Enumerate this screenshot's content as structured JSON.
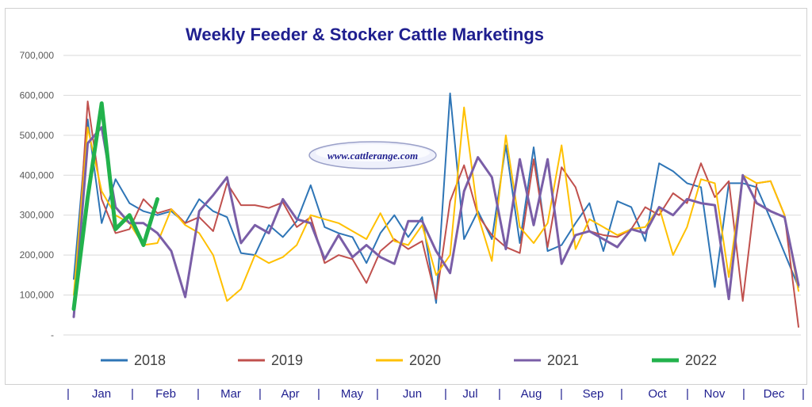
{
  "chart_data": {
    "type": "line",
    "title": "Weekly Feeder & Stocker Cattle Marketings",
    "watermark": "www.cattlerange.com",
    "ylim": [
      0,
      700000
    ],
    "yticks": [
      0,
      100000,
      200000,
      300000,
      400000,
      500000,
      600000,
      700000
    ],
    "ytick_labels": [
      "-",
      "100,000",
      "200,000",
      "300,000",
      "400,000",
      "500,000",
      "600,000",
      "700,000"
    ],
    "grid": true,
    "legend_position": "bottom",
    "month_labels": [
      "Jan",
      "Feb",
      "Mar",
      "Apr",
      "May",
      "Jun",
      "Jul",
      "Aug",
      "Sep",
      "Oct",
      "Nov",
      "Dec"
    ],
    "separator": "|",
    "weeks": 53,
    "series": [
      {
        "name": "2018",
        "color": "#2e75b6",
        "width": 2,
        "values": [
          140000,
          540000,
          280000,
          390000,
          330000,
          310000,
          300000,
          310000,
          280000,
          340000,
          310000,
          295000,
          205000,
          200000,
          275000,
          245000,
          285000,
          375000,
          270000,
          255000,
          245000,
          180000,
          255000,
          300000,
          245000,
          295000,
          80000,
          605000,
          240000,
          310000,
          240000,
          475000,
          230000,
          470000,
          210000,
          225000,
          280000,
          330000,
          210000,
          335000,
          320000,
          235000,
          430000,
          410000,
          380000,
          370000,
          120000,
          380000,
          380000,
          370000,
          290000,
          205000,
          120000
        ]
      },
      {
        "name": "2019",
        "color": "#c0504d",
        "width": 2,
        "values": [
          50000,
          585000,
          340000,
          255000,
          265000,
          340000,
          305000,
          315000,
          280000,
          295000,
          260000,
          380000,
          325000,
          325000,
          318000,
          332000,
          270000,
          295000,
          180000,
          200000,
          190000,
          130000,
          210000,
          240000,
          215000,
          235000,
          90000,
          335000,
          425000,
          300000,
          250000,
          220000,
          205000,
          440000,
          220000,
          420000,
          370000,
          260000,
          250000,
          245000,
          265000,
          320000,
          300000,
          355000,
          330000,
          430000,
          345000,
          385000,
          85000,
          380000,
          385000,
          300000,
          20000
        ]
      },
      {
        "name": "2020",
        "color": "#ffc000",
        "width": 2,
        "values": [
          100000,
          520000,
          360000,
          300000,
          280000,
          225000,
          230000,
          315000,
          275000,
          255000,
          200000,
          85000,
          115000,
          200000,
          180000,
          195000,
          225000,
          300000,
          290000,
          280000,
          260000,
          240000,
          305000,
          235000,
          225000,
          275000,
          150000,
          200000,
          570000,
          300000,
          185000,
          500000,
          270000,
          230000,
          280000,
          475000,
          215000,
          290000,
          270000,
          250000,
          265000,
          270000,
          320000,
          200000,
          270000,
          390000,
          380000,
          145000,
          400000,
          380000,
          385000,
          300000,
          110000
        ]
      },
      {
        "name": "2021",
        "color": "#7a5ea7",
        "width": 3,
        "values": [
          45000,
          480000,
          520000,
          320000,
          280000,
          280000,
          255000,
          210000,
          95000,
          310000,
          350000,
          395000,
          230000,
          275000,
          255000,
          340000,
          290000,
          280000,
          190000,
          250000,
          195000,
          225000,
          195000,
          178000,
          285000,
          285000,
          210000,
          155000,
          360000,
          445000,
          395000,
          215000,
          440000,
          275000,
          440000,
          178000,
          250000,
          260000,
          240000,
          220000,
          265000,
          255000,
          320000,
          300000,
          340000,
          330000,
          325000,
          90000,
          400000,
          330000,
          310000,
          295000,
          125000
        ]
      },
      {
        "name": "2022",
        "color": "#22b24c",
        "width": 5,
        "values": [
          65000,
          345000,
          580000,
          265000,
          300000,
          225000,
          340000
        ]
      }
    ]
  }
}
